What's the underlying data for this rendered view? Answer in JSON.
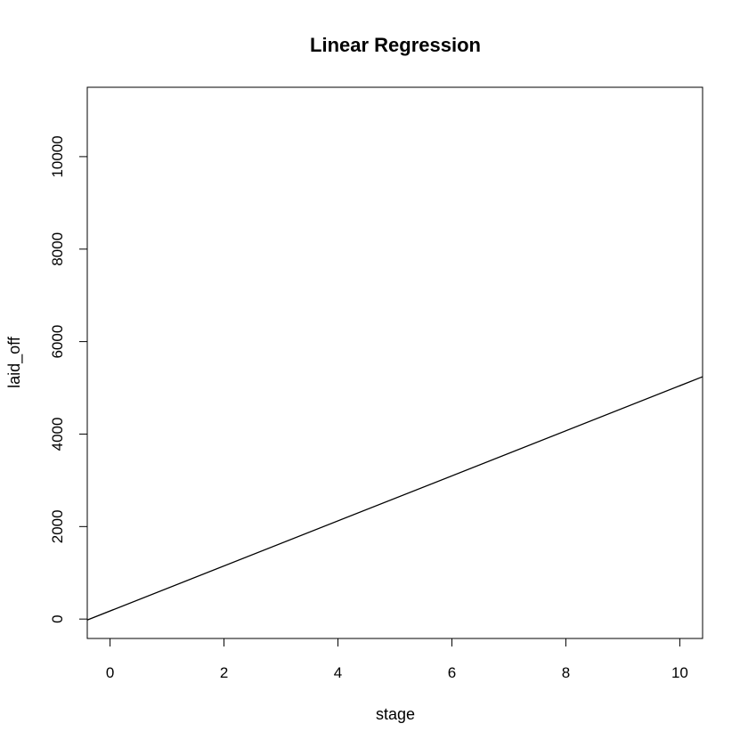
{
  "chart_data": {
    "type": "line",
    "title": "Linear Regression",
    "xlabel": "stage",
    "ylabel": "laid_off",
    "xlim": [
      -0.4,
      10.4
    ],
    "ylim": [
      -420,
      11500
    ],
    "x_ticks": [
      0,
      2,
      4,
      6,
      8,
      10
    ],
    "y_ticks": [
      0,
      2000,
      4000,
      6000,
      8000,
      10000
    ],
    "x_tick_labels": [
      "0",
      "2",
      "4",
      "6",
      "8",
      "10"
    ],
    "y_tick_labels": [
      "0",
      "2000",
      "4000",
      "6000",
      "8000",
      "10000"
    ],
    "grid": false,
    "series": [
      {
        "x": [
          -0.4,
          10.4
        ],
        "y": [
          -20,
          5240
        ],
        "color": "#000000"
      }
    ]
  }
}
